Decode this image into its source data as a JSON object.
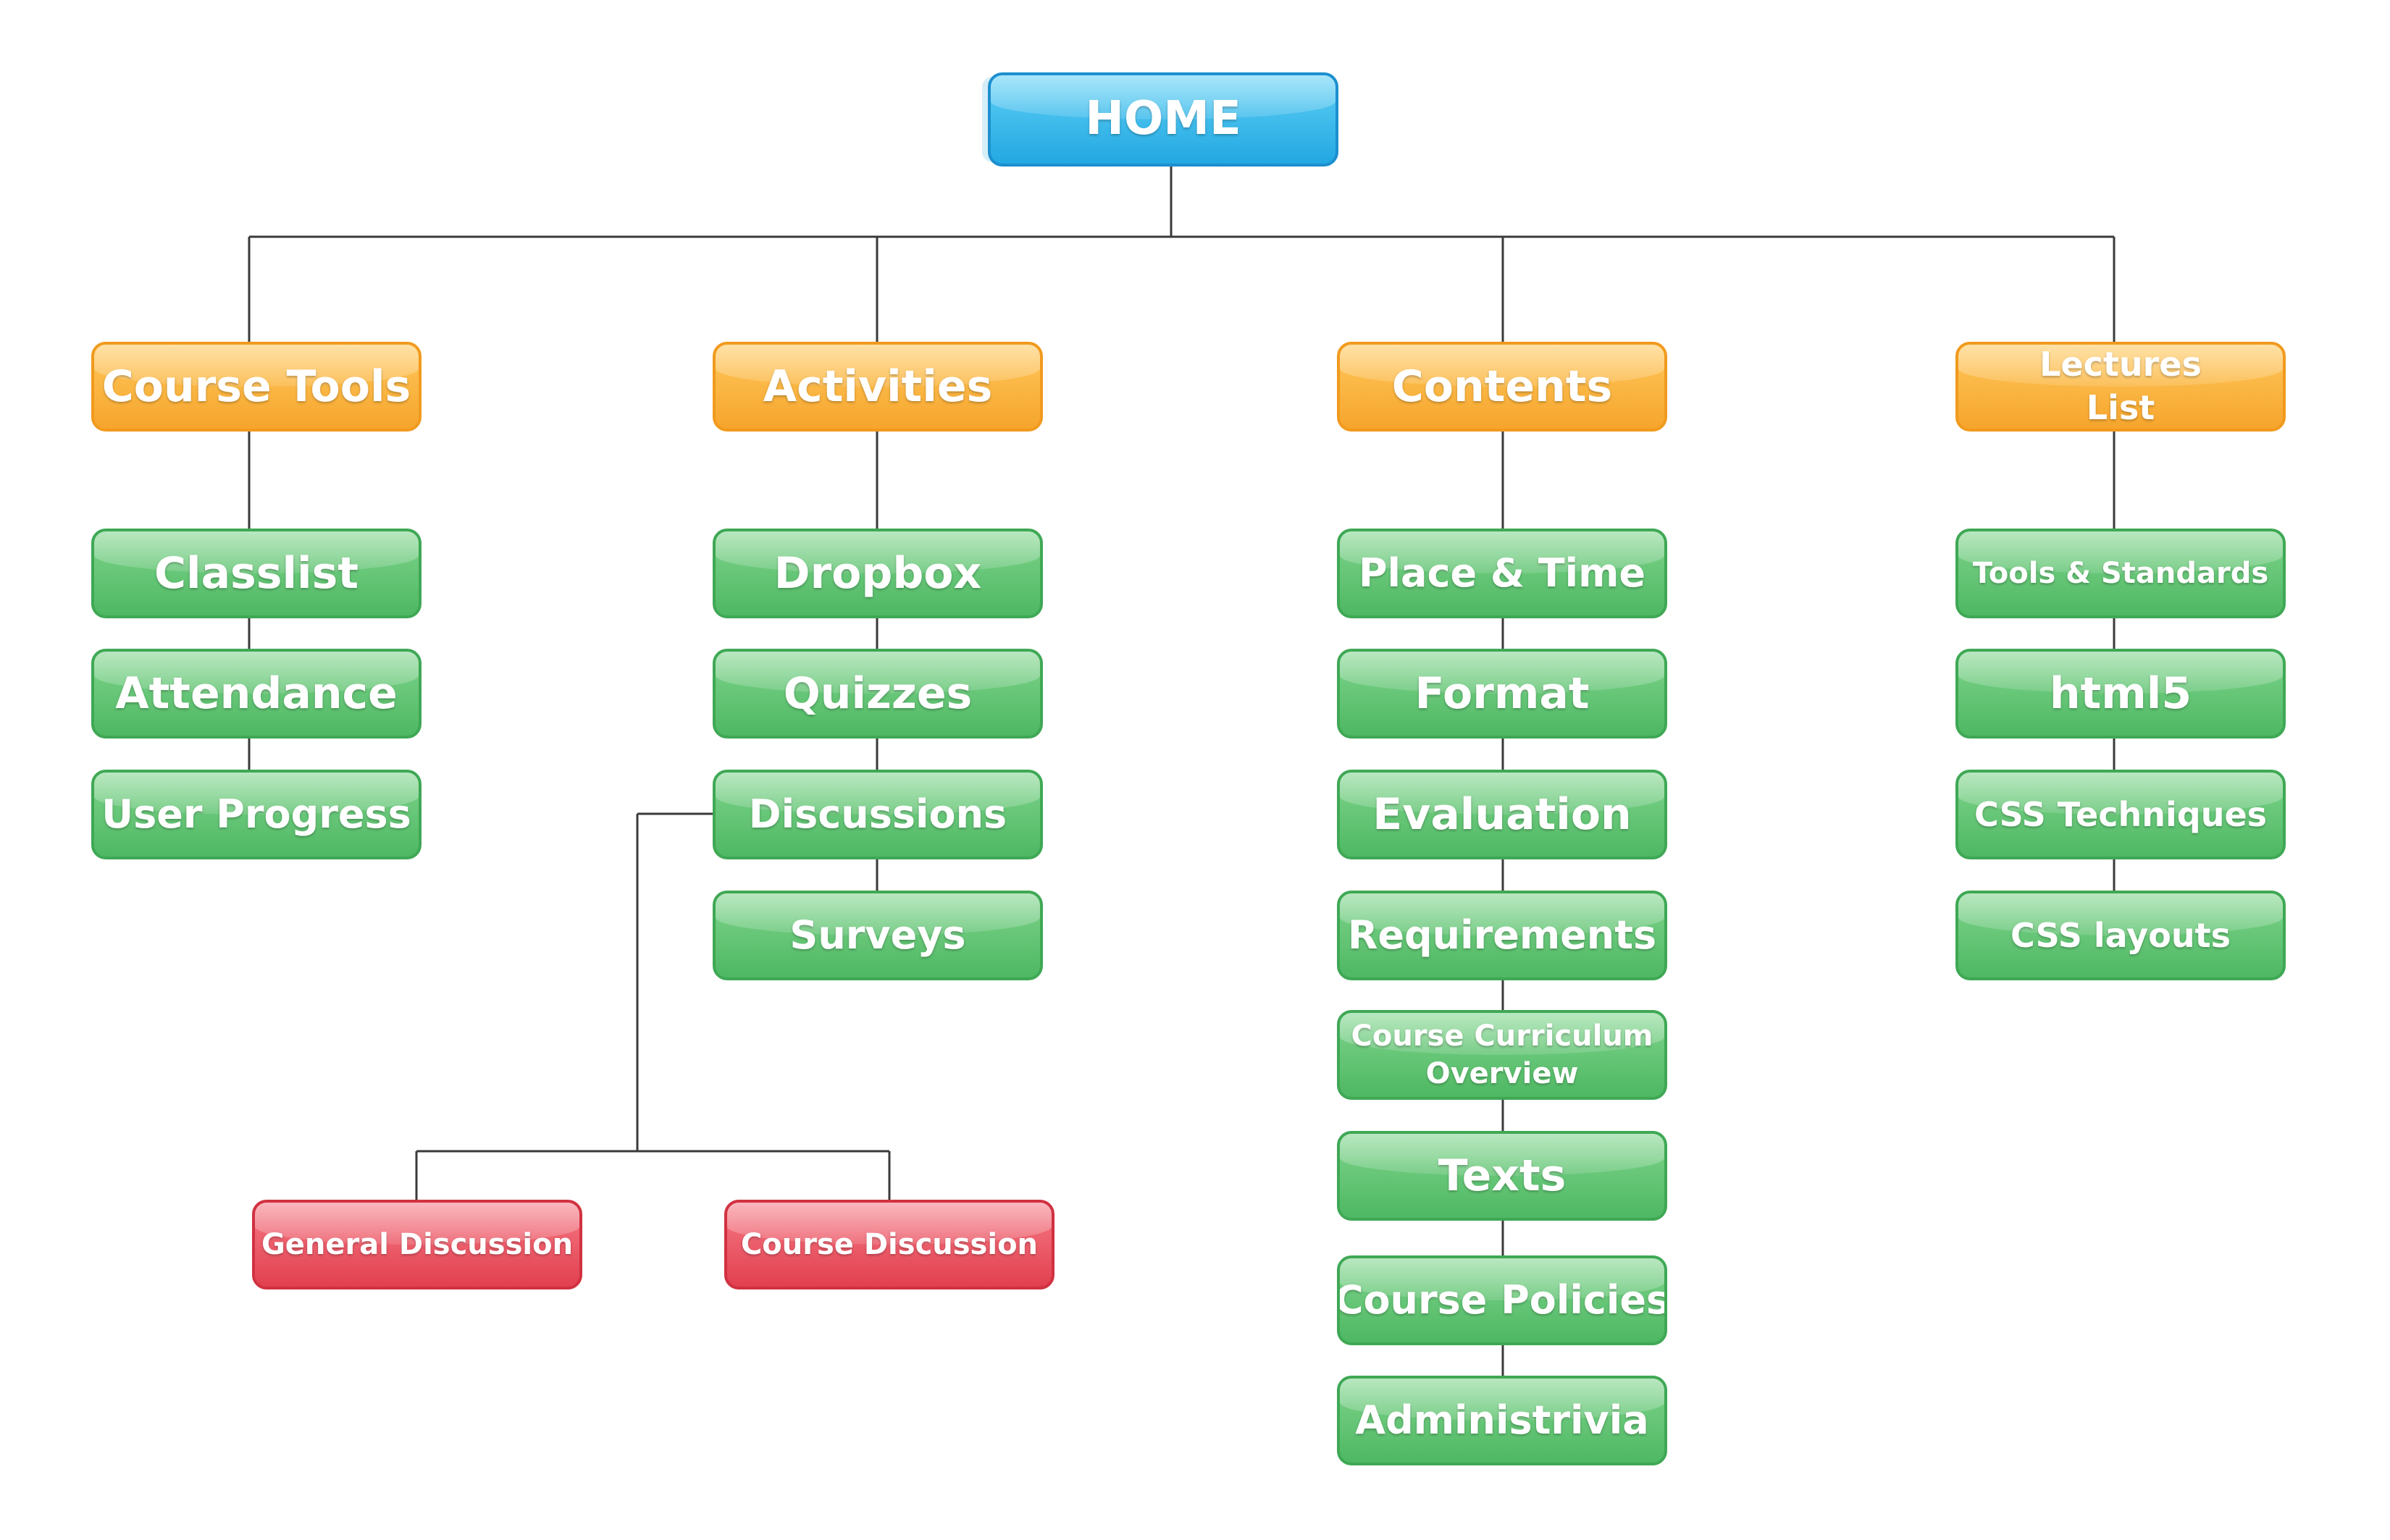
{
  "colors": {
    "home": "#2aaee6",
    "category": "#f7a832",
    "item": "#55bd69",
    "sub_item": "#e44453",
    "connector": "#3a3a3a"
  },
  "root": {
    "label": "HOME"
  },
  "branches": [
    {
      "label": "Course Tools",
      "items": [
        "Classlist",
        "Attendance",
        "User Progress"
      ]
    },
    {
      "label": "Activities",
      "items": [
        "Dropbox",
        "Quizzes",
        "Discussions",
        "Surveys"
      ],
      "sub_items": [
        "General Discussion",
        "Course Discussion"
      ]
    },
    {
      "label": "Contents",
      "items": [
        "Place & Time",
        "Format",
        "Evaluation",
        "Requirements",
        "Course Curriculum Overview",
        "Texts",
        "Course Policies",
        "Administrivia"
      ]
    },
    {
      "label": "Lectures List",
      "items": [
        "Tools & Standards",
        "html5",
        "CSS Techniques",
        "CSS layouts"
      ]
    }
  ]
}
